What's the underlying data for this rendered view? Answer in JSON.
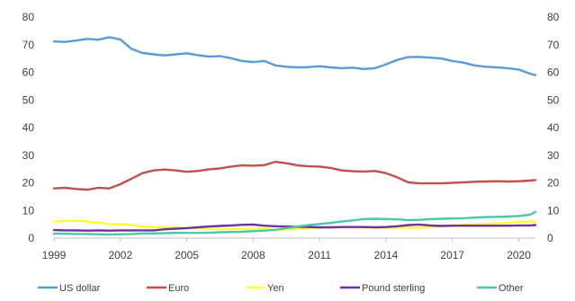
{
  "chart_data": {
    "type": "line",
    "title": "",
    "xlabel": "",
    "ylabel": "",
    "xlim": [
      1999,
      2020.75
    ],
    "ylim": [
      0,
      80
    ],
    "y_ticks": [
      0,
      10,
      20,
      30,
      40,
      50,
      60,
      70,
      80
    ],
    "y_tick_labels": [
      "0",
      "10",
      "20",
      "30",
      "40",
      "50",
      "60",
      "70",
      "80"
    ],
    "x_ticks": [
      1999,
      2002,
      2005,
      2008,
      2011,
      2014,
      2017,
      2020
    ],
    "x_tick_labels": [
      "1999",
      "2002",
      "2005",
      "2008",
      "2011",
      "2014",
      "2017",
      "2020"
    ],
    "secondary_y_axis": true,
    "grid": false,
    "legend_position": "bottom",
    "series": [
      {
        "name": "US dollar",
        "color": "#5b9bd5",
        "points": [
          [
            1999,
            71.2
          ],
          [
            1999.5,
            71.0
          ],
          [
            2000,
            71.5
          ],
          [
            2000.5,
            72.1
          ],
          [
            2001,
            71.8
          ],
          [
            2001.5,
            72.7
          ],
          [
            2002,
            71.9
          ],
          [
            2002.5,
            68.5
          ],
          [
            2003,
            67.0
          ],
          [
            2003.5,
            66.5
          ],
          [
            2004,
            66.1
          ],
          [
            2004.5,
            66.5
          ],
          [
            2005,
            66.9
          ],
          [
            2005.5,
            66.2
          ],
          [
            2006,
            65.7
          ],
          [
            2006.5,
            65.9
          ],
          [
            2007,
            65.1
          ],
          [
            2007.5,
            64.1
          ],
          [
            2008,
            63.7
          ],
          [
            2008.5,
            64.1
          ],
          [
            2009,
            62.5
          ],
          [
            2009.5,
            62.0
          ],
          [
            2010,
            61.8
          ],
          [
            2010.5,
            61.9
          ],
          [
            2011,
            62.2
          ],
          [
            2011.5,
            61.8
          ],
          [
            2012,
            61.5
          ],
          [
            2012.5,
            61.7
          ],
          [
            2013,
            61.2
          ],
          [
            2013.5,
            61.5
          ],
          [
            2014,
            62.9
          ],
          [
            2014.5,
            64.5
          ],
          [
            2015,
            65.5
          ],
          [
            2015.5,
            65.6
          ],
          [
            2016,
            65.3
          ],
          [
            2016.5,
            65.0
          ],
          [
            2017,
            64.1
          ],
          [
            2017.5,
            63.5
          ],
          [
            2018,
            62.5
          ],
          [
            2018.5,
            62.0
          ],
          [
            2019,
            61.8
          ],
          [
            2019.5,
            61.5
          ],
          [
            2020,
            61.0
          ],
          [
            2020.5,
            59.5
          ],
          [
            2020.75,
            59.0
          ]
        ]
      },
      {
        "name": "Euro",
        "color": "#c0504d",
        "points": [
          [
            1999,
            18.0
          ],
          [
            1999.5,
            18.2
          ],
          [
            2000,
            17.8
          ],
          [
            2000.5,
            17.5
          ],
          [
            2001,
            18.2
          ],
          [
            2001.5,
            18.0
          ],
          [
            2002,
            19.5
          ],
          [
            2002.5,
            21.5
          ],
          [
            2003,
            23.5
          ],
          [
            2003.5,
            24.5
          ],
          [
            2004,
            24.8
          ],
          [
            2004.5,
            24.5
          ],
          [
            2005,
            24.0
          ],
          [
            2005.5,
            24.3
          ],
          [
            2006,
            24.9
          ],
          [
            2006.5,
            25.2
          ],
          [
            2007,
            25.9
          ],
          [
            2007.5,
            26.3
          ],
          [
            2008,
            26.2
          ],
          [
            2008.5,
            26.4
          ],
          [
            2009,
            27.6
          ],
          [
            2009.5,
            27.1
          ],
          [
            2010,
            26.3
          ],
          [
            2010.5,
            26.0
          ],
          [
            2011,
            25.9
          ],
          [
            2011.5,
            25.4
          ],
          [
            2012,
            24.5
          ],
          [
            2012.5,
            24.2
          ],
          [
            2013,
            24.1
          ],
          [
            2013.5,
            24.3
          ],
          [
            2014,
            23.5
          ],
          [
            2014.5,
            22.0
          ],
          [
            2015,
            20.2
          ],
          [
            2015.5,
            19.8
          ],
          [
            2016,
            19.8
          ],
          [
            2016.5,
            19.8
          ],
          [
            2017,
            20.0
          ],
          [
            2017.5,
            20.2
          ],
          [
            2018,
            20.4
          ],
          [
            2018.5,
            20.5
          ],
          [
            2019,
            20.6
          ],
          [
            2019.5,
            20.5
          ],
          [
            2020,
            20.6
          ],
          [
            2020.5,
            20.8
          ],
          [
            2020.75,
            21.0
          ]
        ]
      },
      {
        "name": "Yen",
        "color": "#ffff33",
        "points": [
          [
            1999,
            6.0
          ],
          [
            1999.5,
            6.2
          ],
          [
            2000,
            6.3
          ],
          [
            2000.5,
            6.0
          ],
          [
            2001,
            5.6
          ],
          [
            2001.5,
            5.1
          ],
          [
            2002,
            5.0
          ],
          [
            2002.5,
            4.8
          ],
          [
            2003,
            4.2
          ],
          [
            2003.5,
            4.0
          ],
          [
            2004,
            3.9
          ],
          [
            2004.5,
            3.8
          ],
          [
            2005,
            3.7
          ],
          [
            2005.5,
            3.5
          ],
          [
            2006,
            3.3
          ],
          [
            2006.5,
            3.2
          ],
          [
            2007,
            3.2
          ],
          [
            2007.5,
            3.2
          ],
          [
            2008,
            3.3
          ],
          [
            2008.5,
            3.4
          ],
          [
            2009,
            3.0
          ],
          [
            2009.5,
            3.1
          ],
          [
            2010,
            3.5
          ],
          [
            2010.5,
            3.6
          ],
          [
            2011,
            3.8
          ],
          [
            2011.5,
            3.9
          ],
          [
            2012,
            4.0
          ],
          [
            2012.5,
            4.0
          ],
          [
            2013,
            3.9
          ],
          [
            2013.5,
            3.8
          ],
          [
            2014,
            3.7
          ],
          [
            2014.5,
            3.8
          ],
          [
            2015,
            3.8
          ],
          [
            2015.5,
            3.8
          ],
          [
            2016,
            4.0
          ],
          [
            2016.5,
            4.4
          ],
          [
            2017,
            4.6
          ],
          [
            2017.5,
            4.8
          ],
          [
            2018,
            5.0
          ],
          [
            2018.5,
            5.1
          ],
          [
            2019,
            5.3
          ],
          [
            2019.5,
            5.6
          ],
          [
            2020,
            5.8
          ],
          [
            2020.5,
            6.0
          ],
          [
            2020.75,
            6.0
          ]
        ]
      },
      {
        "name": "Pound sterling",
        "color": "#7030a0",
        "points": [
          [
            1999,
            2.9
          ],
          [
            1999.5,
            2.8
          ],
          [
            2000,
            2.8
          ],
          [
            2000.5,
            2.7
          ],
          [
            2001,
            2.8
          ],
          [
            2001.5,
            2.7
          ],
          [
            2002,
            2.8
          ],
          [
            2002.5,
            2.8
          ],
          [
            2003,
            2.8
          ],
          [
            2003.5,
            2.8
          ],
          [
            2004,
            3.2
          ],
          [
            2004.5,
            3.4
          ],
          [
            2005,
            3.6
          ],
          [
            2005.5,
            3.9
          ],
          [
            2006,
            4.2
          ],
          [
            2006.5,
            4.4
          ],
          [
            2007,
            4.6
          ],
          [
            2007.5,
            4.8
          ],
          [
            2008,
            4.9
          ],
          [
            2008.5,
            4.5
          ],
          [
            2009,
            4.3
          ],
          [
            2009.5,
            4.2
          ],
          [
            2010,
            4.1
          ],
          [
            2010.5,
            4.0
          ],
          [
            2011,
            3.9
          ],
          [
            2011.5,
            3.9
          ],
          [
            2012,
            4.0
          ],
          [
            2012.5,
            4.0
          ],
          [
            2013,
            4.0
          ],
          [
            2013.5,
            3.9
          ],
          [
            2014,
            4.0
          ],
          [
            2014.5,
            4.3
          ],
          [
            2015,
            4.7
          ],
          [
            2015.5,
            4.9
          ],
          [
            2016,
            4.6
          ],
          [
            2016.5,
            4.4
          ],
          [
            2017,
            4.5
          ],
          [
            2017.5,
            4.5
          ],
          [
            2018,
            4.5
          ],
          [
            2018.5,
            4.5
          ],
          [
            2019,
            4.5
          ],
          [
            2019.5,
            4.5
          ],
          [
            2020,
            4.6
          ],
          [
            2020.5,
            4.6
          ],
          [
            2020.75,
            4.7
          ]
        ]
      },
      {
        "name": "Other",
        "color": "#4bc8a8",
        "points": [
          [
            1999,
            1.6
          ],
          [
            1999.5,
            1.6
          ],
          [
            2000,
            1.5
          ],
          [
            2000.5,
            1.5
          ],
          [
            2001,
            1.4
          ],
          [
            2001.5,
            1.3
          ],
          [
            2002,
            1.4
          ],
          [
            2002.5,
            1.5
          ],
          [
            2003,
            1.7
          ],
          [
            2003.5,
            1.7
          ],
          [
            2004,
            1.8
          ],
          [
            2004.5,
            1.9
          ],
          [
            2005,
            1.9
          ],
          [
            2005.5,
            1.9
          ],
          [
            2006,
            2.0
          ],
          [
            2006.5,
            2.1
          ],
          [
            2007,
            2.2
          ],
          [
            2007.5,
            2.3
          ],
          [
            2008,
            2.5
          ],
          [
            2008.5,
            2.7
          ],
          [
            2009,
            3.0
          ],
          [
            2009.5,
            3.6
          ],
          [
            2010,
            4.2
          ],
          [
            2010.5,
            4.7
          ],
          [
            2011,
            5.1
          ],
          [
            2011.5,
            5.5
          ],
          [
            2012,
            6.0
          ],
          [
            2012.5,
            6.4
          ],
          [
            2013,
            6.9
          ],
          [
            2013.5,
            7.0
          ],
          [
            2014,
            6.9
          ],
          [
            2014.5,
            6.8
          ],
          [
            2015,
            6.5
          ],
          [
            2015.5,
            6.6
          ],
          [
            2016,
            6.9
          ],
          [
            2016.5,
            7.0
          ],
          [
            2017,
            7.1
          ],
          [
            2017.5,
            7.2
          ],
          [
            2018,
            7.4
          ],
          [
            2018.5,
            7.6
          ],
          [
            2019,
            7.7
          ],
          [
            2019.5,
            7.8
          ],
          [
            2020,
            8.0
          ],
          [
            2020.5,
            8.5
          ],
          [
            2020.75,
            9.5
          ]
        ]
      }
    ]
  }
}
